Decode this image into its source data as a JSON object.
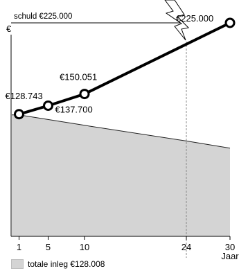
{
  "chart_data": {
    "type": "line",
    "ylabel": "€",
    "xlabel": "Jaar",
    "x_ticks": [
      1,
      5,
      10,
      24,
      30
    ],
    "xlim": [
      0,
      30
    ],
    "debt_label": "schuld €225.000",
    "debt_value": 225000,
    "break_year": 24,
    "series": [
      {
        "kind": "line",
        "points": [
          {
            "x": 1,
            "y": 128743,
            "label": "€128.743"
          },
          {
            "x": 5,
            "y": 137700,
            "label": "€137.700"
          },
          {
            "x": 10,
            "y": 150051,
            "label": "€150.051"
          },
          {
            "x": 30,
            "y": 225000,
            "label": "€225.000"
          }
        ]
      },
      {
        "name": "totale inleg €128.008",
        "kind": "area",
        "points": [
          {
            "x": 1,
            "y": 128008
          },
          {
            "x": 10,
            "y": 117000
          },
          {
            "x": 24,
            "y": 100500
          },
          {
            "x": 30,
            "y": 93000
          }
        ]
      }
    ],
    "colors": {
      "line": "#000000",
      "area": "#d4d4d4",
      "area_edge": "#222222",
      "guide": "#888888"
    }
  }
}
